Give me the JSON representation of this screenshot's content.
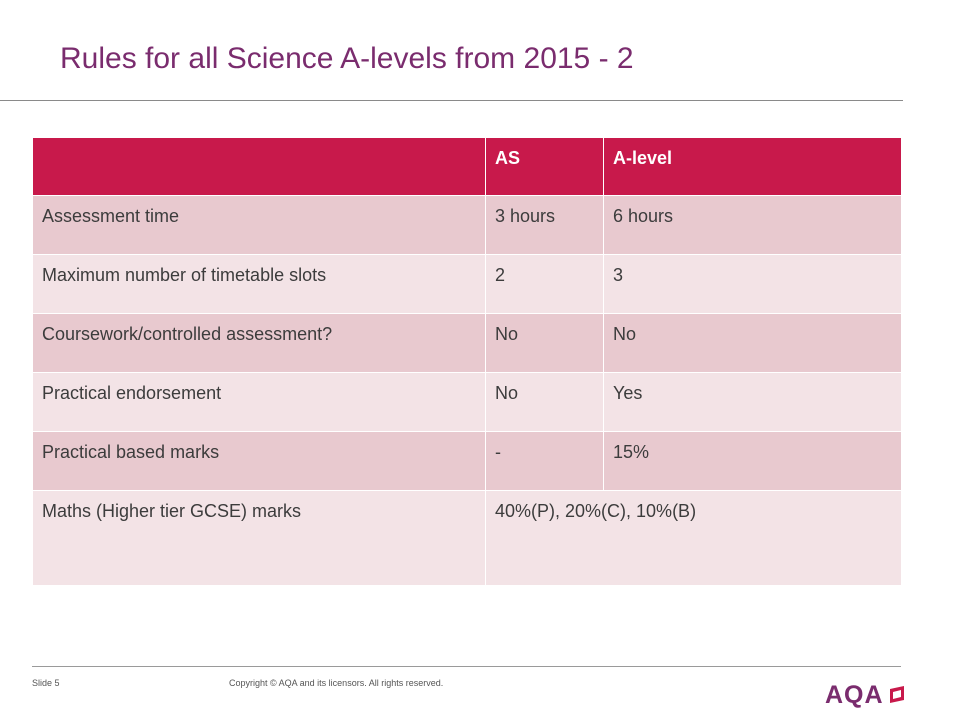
{
  "slide": {
    "title": "Rules for all Science A-levels from 2015 - 2",
    "slide_number": "Slide 5",
    "copyright": "Copyright © AQA and its licensors. All rights reserved.",
    "logo_text": "AQA"
  },
  "table": {
    "headers": [
      "",
      "AS",
      "A-level"
    ],
    "rows": [
      [
        "Assessment time",
        "3 hours",
        "6 hours"
      ],
      [
        "Maximum number of timetable slots",
        "2",
        "3"
      ],
      [
        "Coursework/controlled assessment?",
        "No",
        "No"
      ],
      [
        "Practical endorsement",
        "No",
        "Yes"
      ],
      [
        "Practical based marks",
        "-",
        "15%"
      ],
      [
        "Maths (Higher tier GCSE) marks",
        "40%(P), 20%(C), 10%(B)"
      ]
    ]
  },
  "colors": {
    "title": "#7a2c6e",
    "header_bg": "#c8194b",
    "row_dark": "#e8c9cf",
    "row_light": "#f3e3e6"
  }
}
